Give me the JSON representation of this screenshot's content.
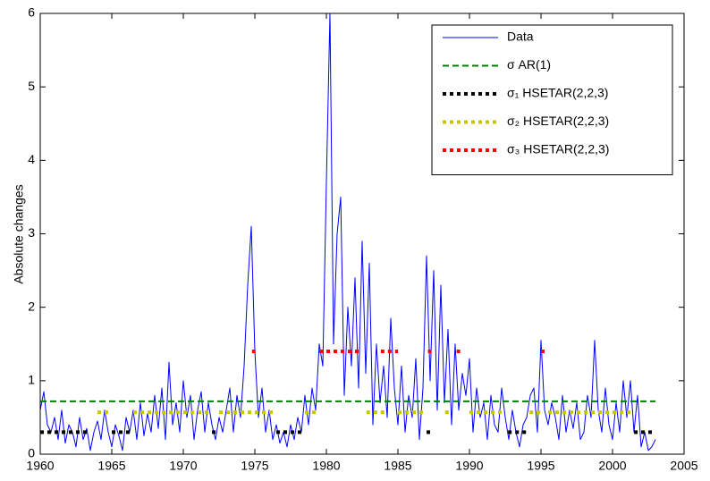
{
  "chart_data": {
    "type": "line",
    "ylabel": "Absolute changes",
    "xlim": [
      1960,
      2005
    ],
    "ylim": [
      0,
      6
    ],
    "xticks": [
      1960,
      1965,
      1970,
      1975,
      1980,
      1985,
      1990,
      1995,
      2000,
      2005
    ],
    "yticks": [
      0,
      1,
      2,
      3,
      4,
      5,
      6
    ],
    "legend": "upper right",
    "x": [
      1960,
      1960.25,
      1960.5,
      1960.75,
      1961,
      1961.25,
      1961.5,
      1961.75,
      1962,
      1962.25,
      1962.5,
      1962.75,
      1963,
      1963.25,
      1963.5,
      1963.75,
      1964,
      1964.25,
      1964.5,
      1964.75,
      1965,
      1965.25,
      1965.5,
      1965.75,
      1966,
      1966.25,
      1966.5,
      1966.75,
      1967,
      1967.25,
      1967.5,
      1967.75,
      1968,
      1968.25,
      1968.5,
      1968.75,
      1969,
      1969.25,
      1969.5,
      1969.75,
      1970,
      1970.25,
      1970.5,
      1970.75,
      1971,
      1971.25,
      1971.5,
      1971.75,
      1972,
      1972.25,
      1972.5,
      1972.75,
      1973,
      1973.25,
      1973.5,
      1973.75,
      1974,
      1974.25,
      1974.5,
      1974.75,
      1975,
      1975.25,
      1975.5,
      1975.75,
      1976,
      1976.25,
      1976.5,
      1976.75,
      1977,
      1977.25,
      1977.5,
      1977.75,
      1978,
      1978.25,
      1978.5,
      1978.75,
      1979,
      1979.25,
      1979.5,
      1979.75,
      1980,
      1980.25,
      1980.5,
      1980.75,
      1981,
      1981.25,
      1981.5,
      1981.75,
      1982,
      1982.25,
      1982.5,
      1982.75,
      1983,
      1983.25,
      1983.5,
      1983.75,
      1984,
      1984.25,
      1984.5,
      1984.75,
      1985,
      1985.25,
      1985.5,
      1985.75,
      1986,
      1986.25,
      1986.5,
      1986.75,
      1987,
      1987.25,
      1987.5,
      1987.75,
      1988,
      1988.25,
      1988.5,
      1988.75,
      1989,
      1989.25,
      1989.5,
      1989.75,
      1990,
      1990.25,
      1990.5,
      1990.75,
      1991,
      1991.25,
      1991.5,
      1991.75,
      1992,
      1992.25,
      1992.5,
      1992.75,
      1993,
      1993.25,
      1993.5,
      1993.75,
      1994,
      1994.25,
      1994.5,
      1994.75,
      1995,
      1995.25,
      1995.5,
      1995.75,
      1996,
      1996.25,
      1996.5,
      1996.75,
      1997,
      1997.25,
      1997.5,
      1997.75,
      1998,
      1998.25,
      1998.5,
      1998.75,
      1999,
      1999.25,
      1999.5,
      1999.75,
      2000,
      2000.25,
      2000.5,
      2000.75,
      2001,
      2001.25,
      2001.5,
      2001.75,
      2002,
      2002.25,
      2002.5,
      2002.75,
      2003
    ],
    "series": [
      {
        "name": "Data",
        "color": "#0000ff",
        "style": "solid",
        "values": [
          0.6,
          0.85,
          0.4,
          0.3,
          0.5,
          0.2,
          0.6,
          0.15,
          0.4,
          0.3,
          0.1,
          0.5,
          0.2,
          0.35,
          0.05,
          0.3,
          0.45,
          0.2,
          0.6,
          0.3,
          0.1,
          0.4,
          0.25,
          0.05,
          0.5,
          0.3,
          0.6,
          0.2,
          0.7,
          0.25,
          0.55,
          0.3,
          0.8,
          0.35,
          0.9,
          0.2,
          1.25,
          0.4,
          0.7,
          0.3,
          1.0,
          0.5,
          0.8,
          0.2,
          0.6,
          0.85,
          0.3,
          0.7,
          0.4,
          0.2,
          0.5,
          0.3,
          0.6,
          0.9,
          0.3,
          0.8,
          0.5,
          1.2,
          2.3,
          3.1,
          1.4,
          0.5,
          0.9,
          0.3,
          0.6,
          0.2,
          0.4,
          0.15,
          0.3,
          0.1,
          0.4,
          0.2,
          0.5,
          0.3,
          0.8,
          0.4,
          0.9,
          0.6,
          1.5,
          1.2,
          3.7,
          6.0,
          1.5,
          3.0,
          3.5,
          0.8,
          2.0,
          1.2,
          2.4,
          0.9,
          2.9,
          1.1,
          2.6,
          0.4,
          1.5,
          0.7,
          1.2,
          0.5,
          1.85,
          0.9,
          0.4,
          1.2,
          0.3,
          0.8,
          0.5,
          1.3,
          0.2,
          0.9,
          2.7,
          1.0,
          2.5,
          0.6,
          2.3,
          0.7,
          1.7,
          0.4,
          1.5,
          0.6,
          1.1,
          0.8,
          1.3,
          0.3,
          0.9,
          0.5,
          0.7,
          0.2,
          0.8,
          0.4,
          0.3,
          0.9,
          0.5,
          0.2,
          0.6,
          0.3,
          0.1,
          0.4,
          0.5,
          0.8,
          0.9,
          0.3,
          1.55,
          0.6,
          0.4,
          0.7,
          0.5,
          0.2,
          0.8,
          0.3,
          0.6,
          0.35,
          0.7,
          0.2,
          0.3,
          0.8,
          0.5,
          1.55,
          0.6,
          0.3,
          0.9,
          0.4,
          0.2,
          0.7,
          0.3,
          1.0,
          0.5,
          1.0,
          0.3,
          0.8,
          0.1,
          0.3,
          0.05,
          0.1,
          0.2
        ]
      },
      {
        "name": "σ AR(1)",
        "color": "#008000",
        "style": "dashed",
        "x": [
          1960,
          2003
        ],
        "values": [
          0.72,
          0.72
        ]
      },
      {
        "name": "σ₁ HSETAR(2,2,3)",
        "color": "#000000",
        "style": "dotted",
        "x": [
          1960,
          1963.5,
          1963.6,
          1965,
          1966.5,
          1966.6,
          1972,
          1972.5,
          1972.6,
          1976.5,
          1978.5,
          1978.6,
          1987,
          1987.3,
          1987.4,
          1992.7,
          1994,
          1994.1,
          2001.5,
          2003
        ],
        "values": [
          0.3,
          0.3,
          null,
          0.3,
          0.3,
          null,
          0.3,
          0.3,
          null,
          0.3,
          0.3,
          null,
          0.3,
          0.3,
          null,
          0.3,
          0.3,
          null,
          0.3,
          0.3
        ]
      },
      {
        "name": "σ₂ HSETAR(2,2,3)",
        "color": "#c8c800",
        "style": "dotted",
        "x": [
          1964,
          1965,
          1965.1,
          1966.5,
          1972,
          1972.1,
          1972.5,
          1976.5,
          1976.6,
          1978.5,
          1979.5,
          1979.6,
          1982.8,
          1984.3,
          1984.4,
          1985,
          1987,
          1987.1,
          1988.3,
          1988.8,
          1988.9,
          1990,
          1992.5,
          1992.6,
          1994.2,
          1995,
          1995.1,
          1995.5,
          2001.5
        ],
        "values": [
          0.57,
          0.57,
          null,
          0.57,
          0.57,
          null,
          0.57,
          0.57,
          null,
          0.57,
          0.57,
          null,
          0.57,
          0.57,
          null,
          0.57,
          0.57,
          null,
          0.57,
          0.57,
          null,
          0.57,
          0.57,
          null,
          0.57,
          0.57,
          null,
          0.57,
          0.57
        ]
      },
      {
        "name": "σ₃ HSETAR(2,2,3)",
        "color": "#ff0000",
        "style": "dotted",
        "x": [
          1974.8,
          1975.1,
          1975.2,
          1979.5,
          1982.5,
          1982.6,
          1983.8,
          1985,
          1985.1,
          1987.1,
          1987.4,
          1987.5,
          1989.1,
          1989.6,
          1989.7,
          1995,
          1995.3
        ],
        "values": [
          1.4,
          1.4,
          null,
          1.4,
          1.4,
          null,
          1.4,
          1.4,
          null,
          1.4,
          1.4,
          null,
          1.4,
          1.4,
          null,
          1.4,
          1.4
        ]
      }
    ]
  }
}
